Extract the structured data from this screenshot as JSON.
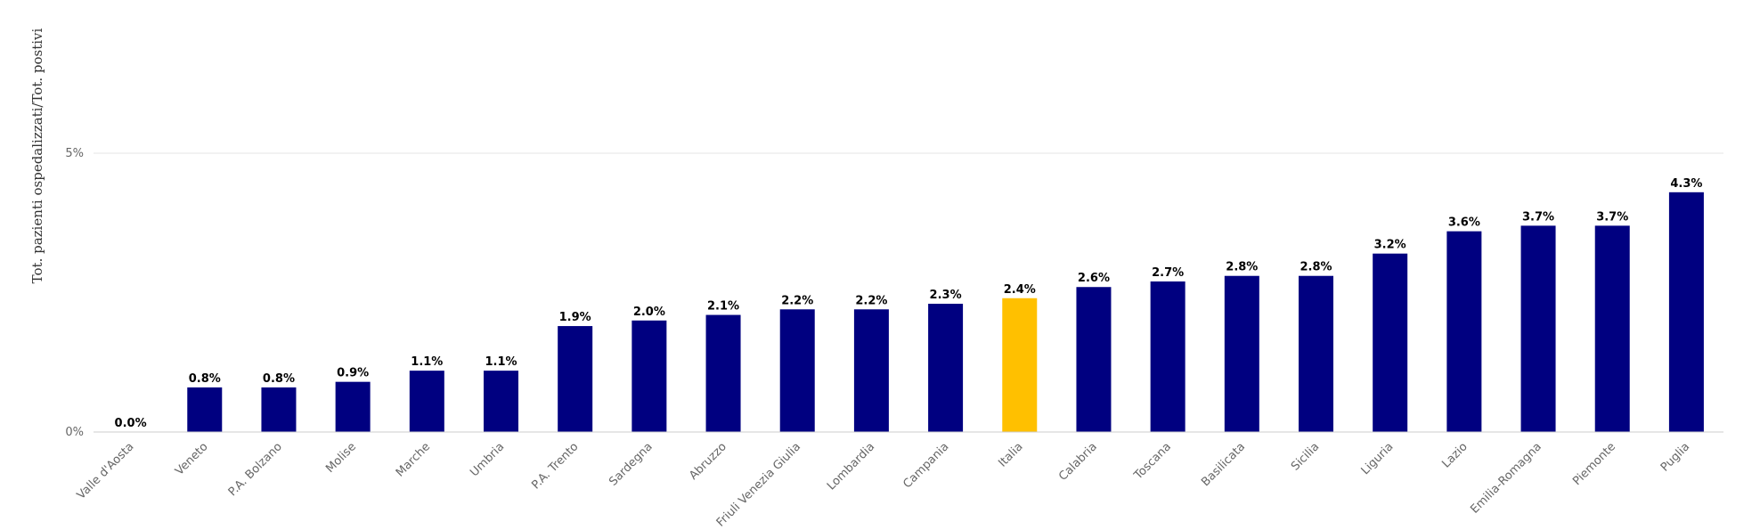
{
  "chart_data": {
    "type": "bar",
    "ylabel": "Tot. pazienti ospedalizzati/Tot. postivi",
    "xlabel": "",
    "ylim": [
      0,
      5
    ],
    "yticks": [
      {
        "value": 0,
        "label": "0%"
      },
      {
        "value": 5,
        "label": "5%"
      }
    ],
    "grid": true,
    "colors": {
      "default": "#000080",
      "highlight": "#FFC000"
    },
    "highlight": "Italia",
    "categories": [
      "Valle d'Aosta",
      "Veneto",
      "P.A. Bolzano",
      "Molise",
      "Marche",
      "Umbria",
      "P.A. Trento",
      "Sardegna",
      "Abruzzo",
      "Friuli Venezia Giulia",
      "Lombardia",
      "Campania",
      "Italia",
      "Calabria",
      "Toscana",
      "Basilicata",
      "Sicilia",
      "Liguria",
      "Lazio",
      "Emilia-Romagna",
      "Piemonte",
      "Puglia"
    ],
    "values": [
      0.0,
      0.8,
      0.8,
      0.9,
      1.1,
      1.1,
      1.9,
      2.0,
      2.1,
      2.2,
      2.2,
      2.3,
      2.4,
      2.6,
      2.7,
      2.8,
      2.8,
      3.2,
      3.6,
      3.7,
      3.7,
      4.3
    ],
    "data_labels": [
      "0.0%",
      "0.8%",
      "0.8%",
      "0.9%",
      "1.1%",
      "1.1%",
      "1.9%",
      "2.0%",
      "2.1%",
      "2.2%",
      "2.2%",
      "2.3%",
      "2.4%",
      "2.6%",
      "2.7%",
      "2.8%",
      "2.8%",
      "3.2%",
      "3.6%",
      "3.7%",
      "3.7%",
      "4.3%"
    ]
  }
}
